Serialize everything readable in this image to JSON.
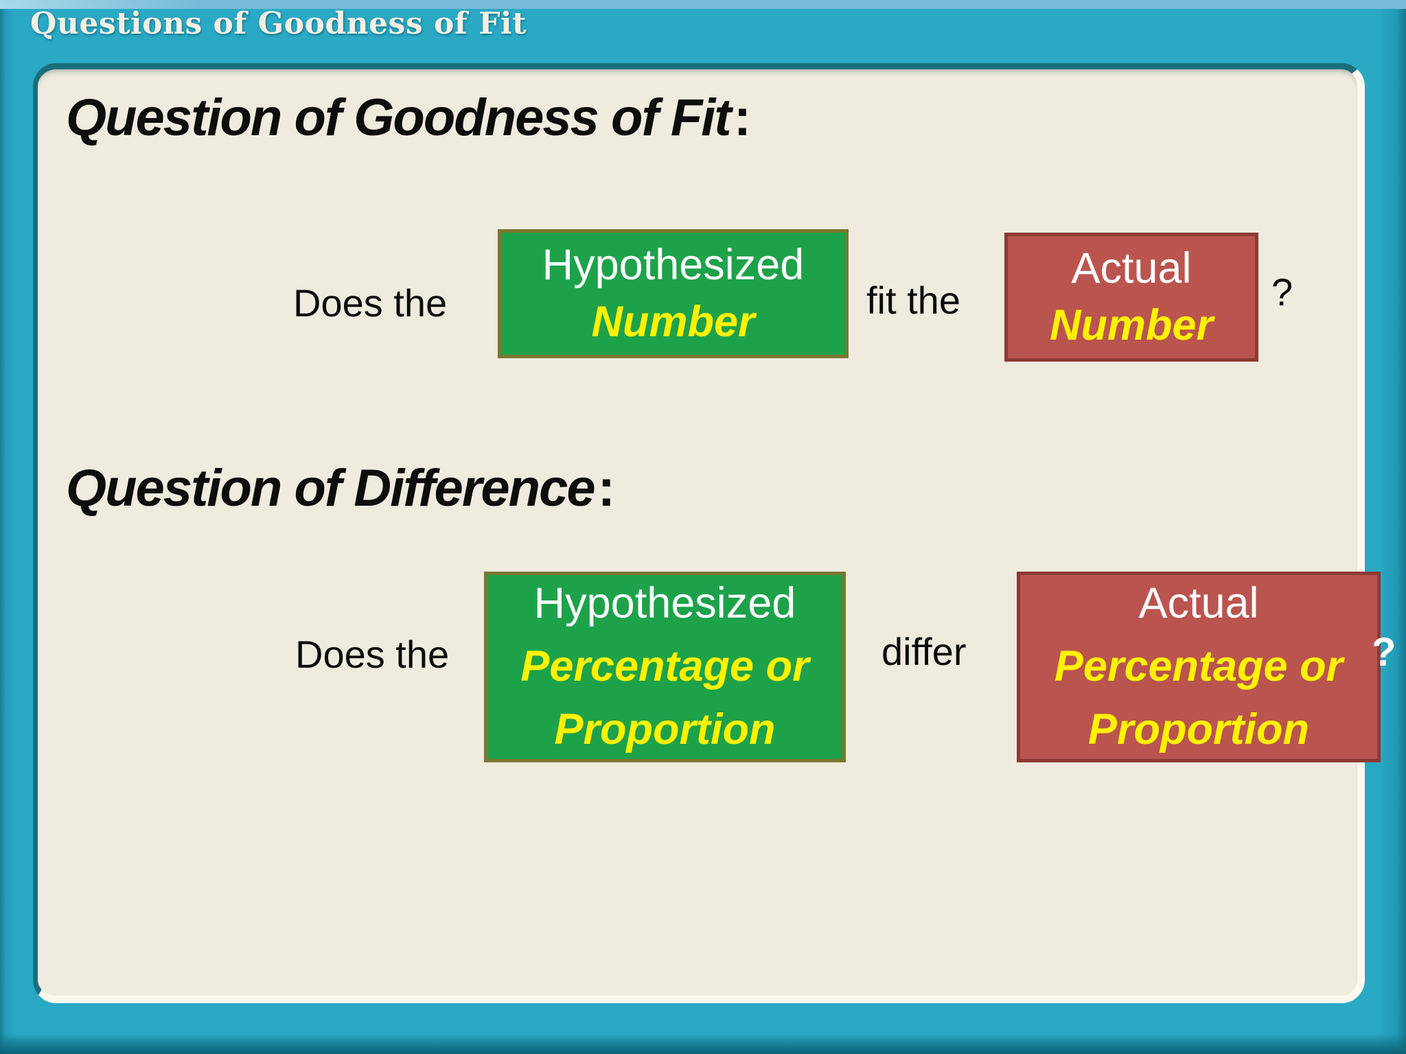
{
  "slide": {
    "title": "Questions of Goodness of Fit",
    "sections": [
      {
        "heading": "Question of Goodness of Fit",
        "colon": ":",
        "lead": "Does the",
        "green_box": {
          "line1": "Hypothesized",
          "line2": "Number"
        },
        "connector": "fit the",
        "red_box": {
          "line1": "Actual",
          "line2": "Number"
        },
        "question_mark": "?"
      },
      {
        "heading": "Question of Difference",
        "colon": ":",
        "lead": "Does the",
        "green_box": {
          "line1": "Hypothesized",
          "line2": "Percentage or",
          "line3": "Proportion"
        },
        "connector": "differ",
        "red_box": {
          "line1": "Actual",
          "line2": "Percentage or",
          "line3": "Proportion"
        },
        "question_mark": "?"
      }
    ],
    "colors": {
      "frame_teal": "#2AA9C5",
      "frame_teal_dark": "#0E6175",
      "frame_teal_light": "#77BBD9",
      "panel_background": "#EFEBDE",
      "panel_shadow_edge": "#1A6E7C",
      "panel_highlight_edge": "#FBF9EE",
      "green_box_fill": "#1DA24A",
      "green_box_border": "#7A7731",
      "red_box_fill": "#BA544E",
      "red_box_border": "#8D3A35",
      "accent_yellow": "#FFF200",
      "body_text": "#0B0B0B",
      "title_text": "#F3F0E3"
    }
  }
}
